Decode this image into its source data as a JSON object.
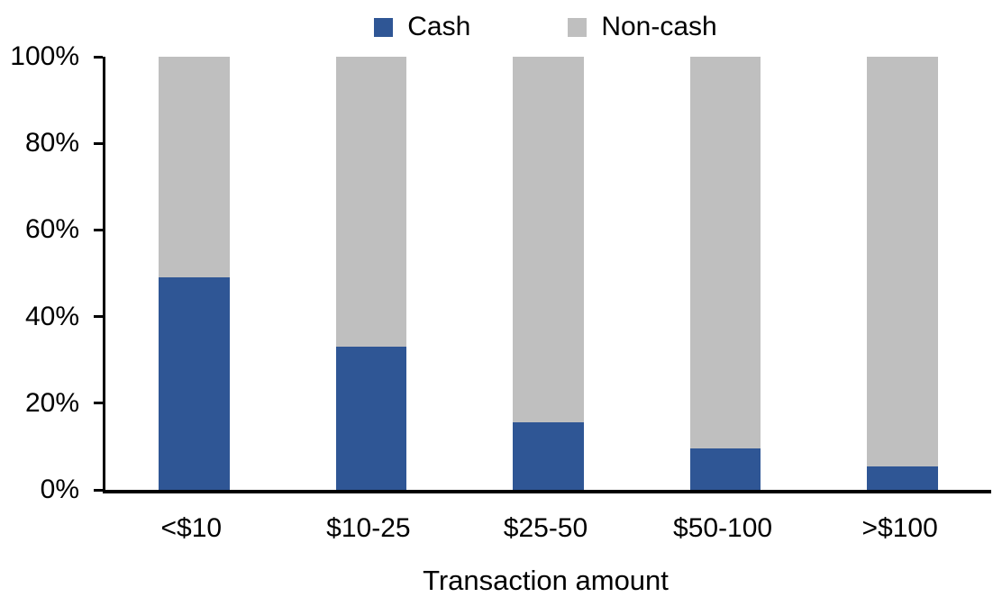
{
  "chart_data": {
    "type": "bar",
    "stacked": true,
    "stacked_to_100_percent": true,
    "title": "",
    "xlabel": "Transaction amount",
    "ylabel": "",
    "ylim": [
      0,
      100
    ],
    "ytick_labels_top_to_bottom": [
      "100%",
      "80%",
      "60%",
      "40%",
      "20%",
      "0%"
    ],
    "grid": false,
    "legend_position": "top-center",
    "categories": [
      "<$10",
      "$10-25",
      "$25-50",
      "$50-100",
      ">$100"
    ],
    "series": [
      {
        "name": "Cash",
        "color": "#2F5695",
        "values": [
          49,
          33,
          15.5,
          9.5,
          5.5
        ]
      },
      {
        "name": "Non-cash",
        "color": "#BFBFBF",
        "values": [
          51,
          67,
          84.5,
          90.5,
          94.5
        ]
      }
    ],
    "axis_color": "#000000",
    "background_color": "#FFFFFF"
  }
}
